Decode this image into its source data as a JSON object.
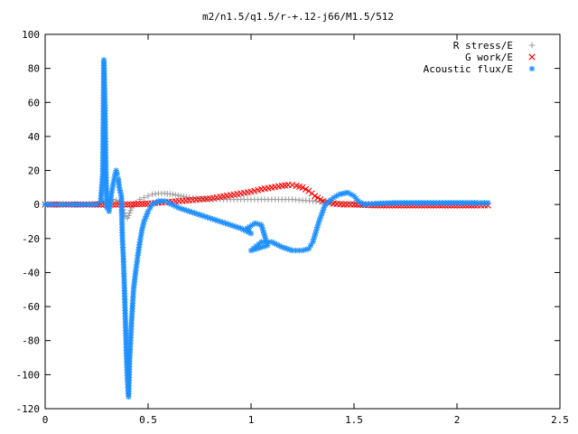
{
  "chart_data": {
    "type": "scatter",
    "title": "m2/n1.5/q1.5/r-+.12-j66/M1.5/512",
    "xlabel": "",
    "ylabel": "",
    "xlim": [
      0,
      2.5
    ],
    "ylim": [
      -120,
      100
    ],
    "xticks": [
      0,
      0.5,
      1,
      1.5,
      2,
      2.5
    ],
    "xtick_labels": [
      "0",
      "0.5",
      "1",
      "1.5",
      "2",
      "2.5"
    ],
    "yticks": [
      -120,
      -100,
      -80,
      -60,
      -40,
      -20,
      0,
      20,
      40,
      60,
      80,
      100
    ],
    "ytick_labels": [
      "-120",
      "-100",
      "-80",
      "-60",
      "-40",
      "-20",
      "0",
      "20",
      "40",
      "60",
      "80",
      "100"
    ],
    "grid": false,
    "legend_position": "top-right",
    "series": [
      {
        "name": "R stress/E",
        "marker": "plus",
        "color": "#a0a0a0",
        "points": [
          [
            0,
            0
          ],
          [
            0.05,
            0
          ],
          [
            0.1,
            0
          ],
          [
            0.15,
            0
          ],
          [
            0.2,
            0
          ],
          [
            0.25,
            0.5
          ],
          [
            0.3,
            2
          ],
          [
            0.33,
            3
          ],
          [
            0.36,
            2
          ],
          [
            0.38,
            -3
          ],
          [
            0.39,
            -7
          ],
          [
            0.4,
            -8
          ],
          [
            0.41,
            -5
          ],
          [
            0.42,
            -2
          ],
          [
            0.44,
            1
          ],
          [
            0.46,
            3
          ],
          [
            0.48,
            4
          ],
          [
            0.5,
            5
          ],
          [
            0.52,
            6
          ],
          [
            0.55,
            6.5
          ],
          [
            0.58,
            6.5
          ],
          [
            0.62,
            6
          ],
          [
            0.66,
            5
          ],
          [
            0.7,
            4
          ],
          [
            0.75,
            3.5
          ],
          [
            0.8,
            3
          ],
          [
            0.85,
            3
          ],
          [
            0.9,
            3
          ],
          [
            0.95,
            3
          ],
          [
            1.0,
            3
          ],
          [
            1.05,
            3
          ],
          [
            1.1,
            3
          ],
          [
            1.15,
            3
          ],
          [
            1.2,
            3
          ],
          [
            1.25,
            2.5
          ],
          [
            1.3,
            2
          ],
          [
            1.35,
            1.5
          ],
          [
            1.4,
            1
          ],
          [
            1.45,
            0.5
          ],
          [
            1.5,
            0.5
          ],
          [
            1.6,
            0.5
          ],
          [
            1.7,
            0.5
          ],
          [
            1.8,
            0.5
          ],
          [
            1.9,
            0.5
          ],
          [
            2.0,
            0.5
          ],
          [
            2.1,
            0.5
          ],
          [
            2.15,
            0.5
          ]
        ]
      },
      {
        "name": "G work/E",
        "marker": "x",
        "color": "#ff0000",
        "points": [
          [
            0,
            0
          ],
          [
            0.1,
            0
          ],
          [
            0.2,
            0
          ],
          [
            0.3,
            0
          ],
          [
            0.4,
            0
          ],
          [
            0.5,
            0.5
          ],
          [
            0.55,
            1
          ],
          [
            0.6,
            1.5
          ],
          [
            0.65,
            2
          ],
          [
            0.7,
            2.5
          ],
          [
            0.75,
            3
          ],
          [
            0.8,
            3.5
          ],
          [
            0.85,
            4.5
          ],
          [
            0.9,
            5.5
          ],
          [
            0.95,
            6.5
          ],
          [
            1.0,
            7.5
          ],
          [
            1.05,
            9
          ],
          [
            1.1,
            10
          ],
          [
            1.15,
            11
          ],
          [
            1.18,
            11.5
          ],
          [
            1.2,
            11.5
          ],
          [
            1.22,
            11
          ],
          [
            1.25,
            10
          ],
          [
            1.28,
            8
          ],
          [
            1.31,
            5
          ],
          [
            1.35,
            2
          ],
          [
            1.4,
            0.5
          ],
          [
            1.45,
            0
          ],
          [
            1.5,
            0
          ],
          [
            1.6,
            -0.5
          ],
          [
            1.7,
            -0.5
          ],
          [
            1.8,
            -0.5
          ],
          [
            1.9,
            -0.5
          ],
          [
            2.0,
            -0.5
          ],
          [
            2.1,
            -0.5
          ],
          [
            2.15,
            -0.5
          ]
        ]
      },
      {
        "name": "Acoustic flux/E",
        "marker": "star",
        "color": "#1e90ff",
        "points": [
          [
            0,
            0
          ],
          [
            0.05,
            0
          ],
          [
            0.1,
            0
          ],
          [
            0.15,
            0
          ],
          [
            0.2,
            0
          ],
          [
            0.25,
            0
          ],
          [
            0.27,
            2
          ],
          [
            0.28,
            18
          ],
          [
            0.285,
            85
          ],
          [
            0.29,
            60
          ],
          [
            0.295,
            19
          ],
          [
            0.3,
            -2
          ],
          [
            0.31,
            -4
          ],
          [
            0.32,
            5
          ],
          [
            0.33,
            12
          ],
          [
            0.34,
            18
          ],
          [
            0.345,
            20
          ],
          [
            0.35,
            18
          ],
          [
            0.355,
            15
          ],
          [
            0.36,
            10
          ],
          [
            0.37,
            5
          ],
          [
            0.375,
            -20
          ],
          [
            0.38,
            -32
          ],
          [
            0.385,
            -49
          ],
          [
            0.39,
            -69
          ],
          [
            0.395,
            -89
          ],
          [
            0.4,
            -104
          ],
          [
            0.405,
            -113
          ],
          [
            0.41,
            -92
          ],
          [
            0.415,
            -80
          ],
          [
            0.42,
            -68
          ],
          [
            0.425,
            -58
          ],
          [
            0.43,
            -49
          ],
          [
            0.44,
            -39
          ],
          [
            0.45,
            -30
          ],
          [
            0.46,
            -22
          ],
          [
            0.47,
            -15
          ],
          [
            0.48,
            -10
          ],
          [
            0.5,
            -4
          ],
          [
            0.52,
            0
          ],
          [
            0.55,
            2
          ],
          [
            0.58,
            2
          ],
          [
            0.6,
            1
          ],
          [
            0.65,
            -2
          ],
          [
            0.7,
            -4
          ],
          [
            0.75,
            -6
          ],
          [
            0.8,
            -8
          ],
          [
            0.85,
            -10
          ],
          [
            0.9,
            -12
          ],
          [
            0.95,
            -14
          ],
          [
            1.0,
            -17
          ],
          [
            0.98,
            -14
          ],
          [
            1.02,
            -11
          ],
          [
            1.05,
            -12
          ],
          [
            1.07,
            -20
          ],
          [
            1.08,
            -24
          ],
          [
            1.0,
            -27
          ],
          [
            1.05,
            -22
          ],
          [
            1.1,
            -22
          ],
          [
            1.15,
            -25
          ],
          [
            1.2,
            -27
          ],
          [
            1.25,
            -27
          ],
          [
            1.28,
            -26
          ],
          [
            1.3,
            -22
          ],
          [
            1.33,
            -10
          ],
          [
            1.36,
            0
          ],
          [
            1.4,
            4
          ],
          [
            1.43,
            6
          ],
          [
            1.47,
            7
          ],
          [
            1.5,
            5
          ],
          [
            1.52,
            2
          ],
          [
            1.55,
            0
          ],
          [
            1.6,
            0.5
          ],
          [
            1.7,
            1
          ],
          [
            1.8,
            1
          ],
          [
            1.9,
            1
          ],
          [
            2.0,
            1
          ],
          [
            2.1,
            1
          ],
          [
            2.15,
            1
          ]
        ]
      }
    ]
  }
}
